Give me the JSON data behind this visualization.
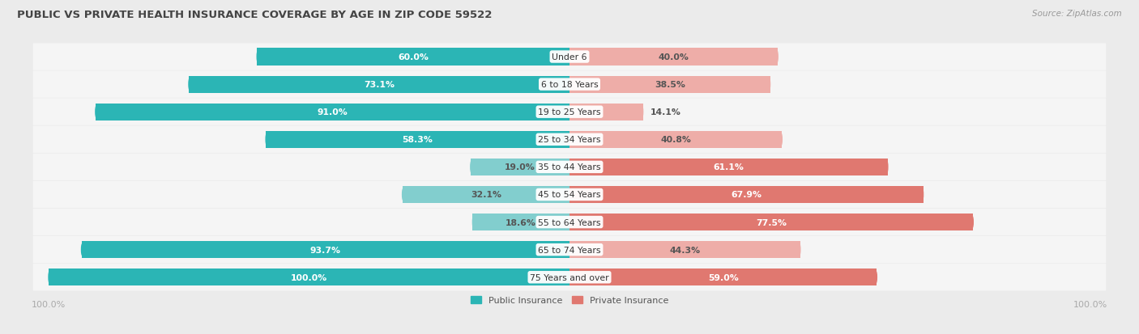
{
  "title": "PUBLIC VS PRIVATE HEALTH INSURANCE COVERAGE BY AGE IN ZIP CODE 59522",
  "source": "Source: ZipAtlas.com",
  "categories": [
    "Under 6",
    "6 to 18 Years",
    "19 to 25 Years",
    "25 to 34 Years",
    "35 to 44 Years",
    "45 to 54 Years",
    "55 to 64 Years",
    "65 to 74 Years",
    "75 Years and over"
  ],
  "public_values": [
    60.0,
    73.1,
    91.0,
    58.3,
    19.0,
    32.1,
    18.6,
    93.7,
    100.0
  ],
  "private_values": [
    40.0,
    38.5,
    14.1,
    40.8,
    61.1,
    67.9,
    77.5,
    44.3,
    59.0
  ],
  "public_color_dark": "#2bb5b5",
  "public_color_light": "#82cece",
  "private_color_dark": "#e07870",
  "private_color_light": "#eeada8",
  "bg_color": "#ebebeb",
  "row_bg_color": "#f5f5f5",
  "title_color": "#444444",
  "source_color": "#999999",
  "label_dark": "#ffffff",
  "label_outside": "#555555",
  "axis_label_color": "#aaaaaa",
  "legend_public": "Public Insurance",
  "legend_private": "Private Insurance",
  "pub_inside_threshold": 12,
  "priv_inside_threshold": 25
}
